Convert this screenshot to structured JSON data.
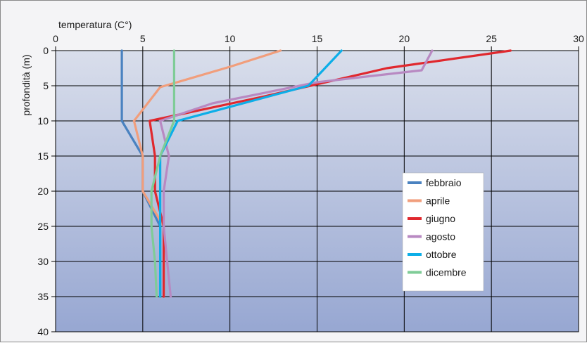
{
  "chart_data": {
    "type": "line",
    "title": "",
    "xlabel": "temperatura (C°)",
    "ylabel": "profondità (m)",
    "xlim": [
      0,
      30
    ],
    "ylim": [
      0,
      40
    ],
    "x_axis_position": "top",
    "y_axis_inverted": true,
    "x_ticks": [
      0,
      5,
      10,
      15,
      20,
      25,
      30
    ],
    "y_ticks": [
      0,
      5,
      10,
      15,
      20,
      25,
      30,
      35,
      40
    ],
    "grid": true,
    "legend_position": "bottom-right",
    "background_gradient": [
      "#d9deeb",
      "#97a7d2"
    ],
    "series": [
      {
        "name": "febbraio",
        "color": "#4a82c0",
        "points": [
          [
            3.8,
            0
          ],
          [
            3.8,
            5
          ],
          [
            3.8,
            10
          ],
          [
            5.0,
            15
          ],
          [
            5.0,
            20
          ],
          [
            6.0,
            25
          ],
          [
            6.0,
            30
          ],
          [
            6.0,
            35
          ]
        ]
      },
      {
        "name": "aprile",
        "color": "#f19e7c",
        "points": [
          [
            12.9,
            0
          ],
          [
            10.0,
            2.3
          ],
          [
            6.0,
            5.2
          ],
          [
            4.5,
            10
          ],
          [
            5.0,
            15
          ],
          [
            5.0,
            20
          ],
          [
            6.2,
            25
          ],
          [
            6.2,
            30
          ],
          [
            6.2,
            35
          ]
        ]
      },
      {
        "name": "giugno",
        "color": "#e0282e",
        "points": [
          [
            26.1,
            0
          ],
          [
            19.0,
            2.5
          ],
          [
            12.0,
            6.5
          ],
          [
            5.4,
            10
          ],
          [
            5.7,
            15
          ],
          [
            5.7,
            20
          ],
          [
            6.2,
            25
          ],
          [
            6.2,
            30
          ],
          [
            6.2,
            35
          ]
        ]
      },
      {
        "name": "agosto",
        "color": "#b889c2",
        "points": [
          [
            21.6,
            0
          ],
          [
            21.0,
            2.8
          ],
          [
            15.0,
            4.5
          ],
          [
            9.0,
            7.5
          ],
          [
            6.0,
            10
          ],
          [
            6.5,
            15
          ],
          [
            6.2,
            20
          ],
          [
            6.2,
            25
          ],
          [
            6.4,
            30
          ],
          [
            6.6,
            35
          ]
        ]
      },
      {
        "name": "ottobre",
        "color": "#0caee8",
        "points": [
          [
            16.4,
            0
          ],
          [
            14.5,
            5
          ],
          [
            7.0,
            10
          ],
          [
            6.0,
            15
          ],
          [
            6.0,
            20
          ],
          [
            6.0,
            25
          ],
          [
            6.0,
            30
          ],
          [
            6.0,
            35
          ]
        ]
      },
      {
        "name": "dicembre",
        "color": "#7fcc97",
        "points": [
          [
            6.8,
            0
          ],
          [
            6.8,
            5
          ],
          [
            6.8,
            10
          ],
          [
            6.0,
            15
          ],
          [
            5.5,
            20
          ],
          [
            5.5,
            25
          ],
          [
            5.7,
            30
          ],
          [
            5.8,
            35
          ]
        ]
      }
    ]
  }
}
